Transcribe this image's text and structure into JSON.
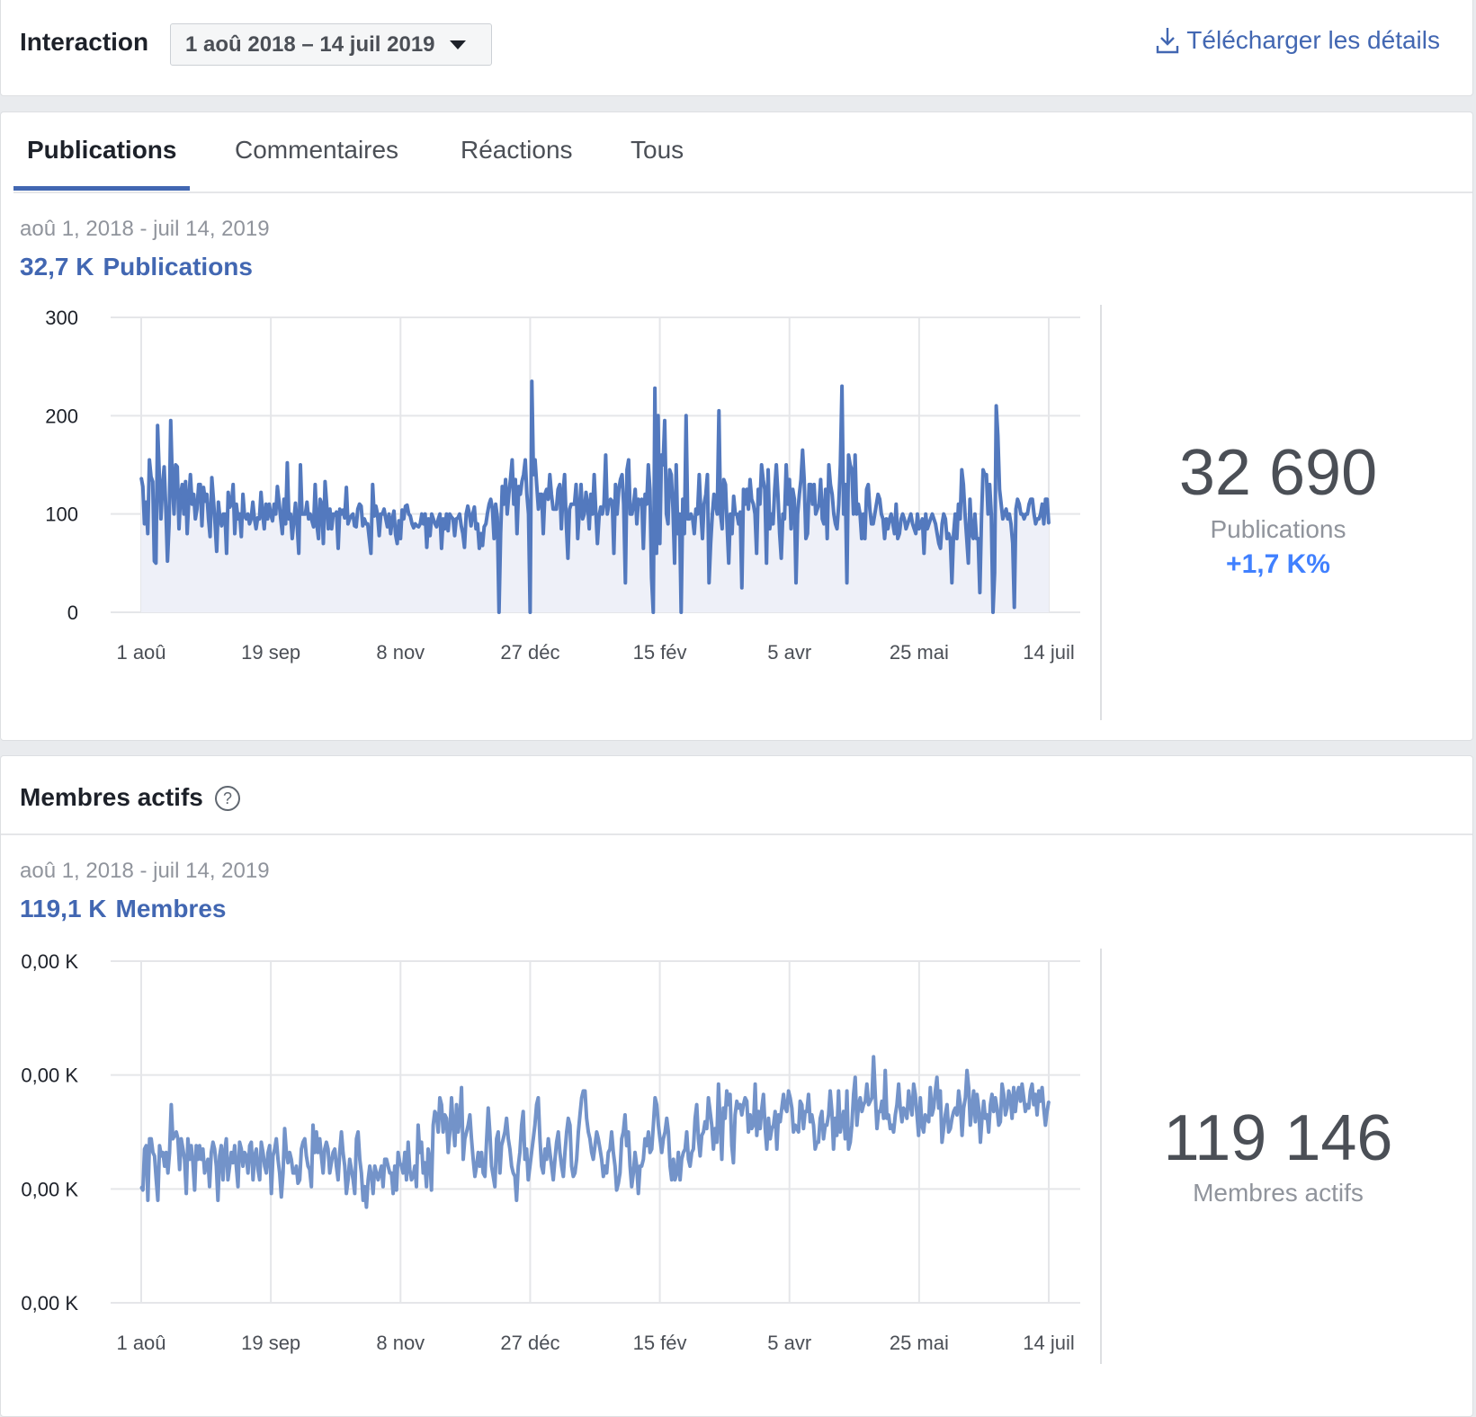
{
  "header": {
    "title": "Interaction",
    "date_range_label": "1 aoû 2018 – 14 juil 2019",
    "download_label": "Télécharger les détails"
  },
  "tabs": [
    {
      "label": "Publications",
      "active": true
    },
    {
      "label": "Commentaires",
      "active": false
    },
    {
      "label": "Réactions",
      "active": false
    },
    {
      "label": "Tous",
      "active": false
    }
  ],
  "publications": {
    "date_range": "aoû 1, 2018 - juil 14, 2019",
    "total_short": "32,7 K",
    "total_unit": "Publications",
    "big_number": "32 690",
    "big_label": "Publications",
    "delta": "+1,7 K%"
  },
  "members": {
    "section_title": "Membres actifs",
    "help_icon": "?",
    "date_range": "aoû 1, 2018 - juil 14, 2019",
    "total_short": "119,1 K",
    "total_unit": "Membres",
    "big_number": "119 146",
    "big_label": "Membres actifs"
  },
  "colors": {
    "accent": "#4267b2",
    "line_pub": "#5379be",
    "line_members": "#7393c9",
    "area_fill": "#eef0f8",
    "delta": "#4080ff"
  },
  "chart_data": [
    {
      "type": "area",
      "series": [
        {
          "values": [
            137,
            128,
            90,
            112,
            80,
            155,
            138,
            133,
            52,
            50,
            190,
            140,
            95,
            128,
            148,
            105,
            52,
            90,
            195,
            130,
            100,
            150,
            148,
            85,
            120,
            130,
            100,
            133,
            80,
            115,
            140,
            110,
            120,
            95,
            105,
            130,
            130,
            88,
            127,
            113,
            120,
            95,
            77,
            137,
            115,
            90,
            62,
            112,
            95,
            88,
            100,
            100,
            60,
            122,
            107,
            110,
            130,
            80,
            110,
            95,
            100,
            77,
            120,
            98,
            95,
            100,
            90,
            95,
            112,
            95,
            85,
            96,
            95,
            122,
            100,
            85,
            110,
            95,
            110,
            99,
            93,
            110,
            100,
            128,
            112,
            95,
            80,
            115,
            90,
            152,
            95,
            100,
            75,
            93,
            111,
            90,
            60,
            150,
            100,
            100,
            100,
            112,
            95,
            100,
            93,
            87,
            130,
            90,
            75,
            115,
            110,
            70,
            133,
            110,
            85,
            105,
            85,
            100,
            99,
            102,
            65,
            105,
            100,
            104,
            96,
            127,
            90,
            95,
            98,
            100,
            88,
            87,
            105,
            110,
            108,
            88,
            95,
            90,
            90,
            75,
            60,
            130,
            98,
            108,
            100,
            78,
            100,
            100,
            105,
            95,
            87,
            100,
            80,
            95,
            103,
            79,
            70,
            93,
            75,
            104,
            95,
            108,
            109,
            100,
            98,
            90,
            86,
            90,
            88,
            87,
            90,
            100,
            90,
            100,
            66,
            95,
            78,
            100,
            95,
            90,
            87,
            95,
            100,
            65,
            95,
            85,
            100,
            83,
            100,
            97,
            95,
            78,
            95,
            96,
            100,
            88,
            80,
            66,
            100,
            108,
            100,
            88,
            100,
            107,
            85,
            90,
            65,
            80,
            68,
            87,
            90,
            101,
            110,
            115,
            105,
            75,
            110,
            97,
            0,
            80,
            128,
            110,
            135,
            100,
            120,
            135,
            155,
            110,
            135,
            80,
            128,
            120,
            133,
            140,
            155,
            120,
            100,
            0,
            235,
            140,
            155,
            130,
            105,
            120,
            120,
            80,
            120,
            125,
            115,
            140,
            120,
            105,
            105,
            105,
            125,
            130,
            85,
            120,
            140,
            90,
            55,
            105,
            110,
            110,
            110,
            130,
            75,
            105,
            130,
            95,
            100,
            122,
            110,
            85,
            120,
            100,
            140,
            103,
            70,
            98,
            107,
            100,
            110,
            160,
            100,
            110,
            115,
            113,
            60,
            130,
            100,
            125,
            135,
            140,
            110,
            30,
            145,
            155,
            100,
            100,
            110,
            125,
            90,
            115,
            110,
            115,
            65,
            120,
            110,
            150,
            125,
            35,
            0,
            228,
            60,
            200,
            70,
            160,
            150,
            195,
            100,
            90,
            145,
            140,
            105,
            50,
            150,
            80,
            100,
            0,
            115,
            80,
            200,
            95,
            95,
            100,
            95,
            80,
            105,
            100,
            140,
            102,
            75,
            110,
            120,
            140,
            30,
            70,
            100,
            120,
            110,
            100,
            205,
            100,
            85,
            135,
            130,
            88,
            50,
            100,
            80,
            118,
            100,
            100,
            90,
            102,
            25,
            125,
            110,
            125,
            105,
            135,
            115,
            110,
            100,
            60,
            125,
            110,
            150,
            135,
            125,
            50,
            145,
            85,
            100,
            90,
            125,
            150,
            120,
            80,
            55,
            100,
            95,
            150,
            110,
            135,
            85,
            125,
            115,
            30,
            100,
            120,
            135,
            165,
            135,
            75,
            80,
            130,
            130,
            110,
            130,
            100,
            105,
            110,
            135,
            95,
            90,
            125,
            75,
            150,
            130,
            120,
            100,
            90,
            85,
            110,
            150,
            230,
            100,
            130,
            30,
            160,
            150,
            145,
            100,
            160,
            100,
            110,
            100,
            75,
            100,
            75,
            125,
            130,
            105,
            90,
            90,
            100,
            110,
            120,
            115,
            100,
            95,
            75,
            95,
            85,
            95,
            100,
            90,
            80,
            110,
            75,
            80,
            95,
            100,
            95,
            85,
            90,
            95,
            100,
            90,
            85,
            80,
            100,
            85,
            90,
            95,
            60,
            100,
            85,
            90,
            95,
            100,
            95,
            90,
            80,
            70,
            65,
            90,
            100,
            95,
            75,
            80,
            75,
            30,
            80,
            100,
            75,
            110,
            95,
            145,
            130,
            100,
            75,
            50,
            115,
            80,
            75,
            100,
            75,
            75,
            20,
            95,
            145,
            140,
            140,
            100,
            130,
            100,
            0,
            40,
            210,
            180,
            125,
            110,
            95,
            100,
            105,
            95,
            100,
            90,
            70,
            5,
            105,
            115,
            110,
            100,
            100,
            95,
            100,
            100,
            110,
            115,
            115,
            100,
            90,
            95,
            95,
            100,
            110,
            90,
            115,
            115,
            90
          ],
          "color_key": "line_pub"
        }
      ],
      "x_ticks": [
        "1 aoû",
        "19 sep",
        "8 nov",
        "27 déc",
        "15 fév",
        "5 avr",
        "25 mai",
        "14 juil"
      ],
      "y_ticks": [
        "0",
        "100",
        "200",
        "300"
      ],
      "ylim": [
        0,
        300
      ]
    },
    {
      "type": "line",
      "series": [
        {
          "values": [
            34,
            33,
            45,
            46,
            30,
            48,
            48,
            44,
            43,
            36,
            30,
            46,
            43,
            44,
            40,
            44,
            38,
            44,
            58,
            48,
            49,
            50,
            48,
            39,
            48,
            45,
            42,
            32,
            48,
            42,
            46,
            41,
            33,
            46,
            42,
            46,
            42,
            45,
            38,
            40,
            42,
            34,
            44,
            47,
            45,
            40,
            30,
            43,
            46,
            36,
            44,
            48,
            36,
            40,
            44,
            41,
            46,
            40,
            34,
            47,
            45,
            40,
            44,
            43,
            38,
            46,
            47,
            36,
            43,
            45,
            39,
            36,
            47,
            44,
            40,
            38,
            44,
            46,
            32,
            43,
            45,
            48,
            42,
            38,
            31,
            38,
            51,
            44,
            41,
            44,
            42,
            38,
            38,
            40,
            35,
            36,
            45,
            47,
            48,
            43,
            40,
            39,
            34,
            52,
            44,
            50,
            44,
            48,
            43,
            38,
            45,
            47,
            45,
            38,
            41,
            44,
            45,
            40,
            36,
            44,
            50,
            44,
            40,
            32,
            36,
            42,
            39,
            36,
            32,
            48,
            50,
            42,
            38,
            30,
            34,
            28,
            36,
            40,
            37,
            32,
            40,
            38,
            36,
            38,
            40,
            34,
            42,
            42,
            40,
            38,
            38,
            32,
            40,
            33,
            44,
            41,
            40,
            38,
            44,
            36,
            47,
            39,
            36,
            37,
            40,
            34,
            52,
            44,
            47,
            38,
            41,
            34,
            45,
            42,
            33,
            52,
            56,
            55,
            50,
            60,
            58,
            50,
            55,
            54,
            44,
            50,
            60,
            52,
            46,
            58,
            50,
            54,
            63,
            42,
            48,
            50,
            52,
            55,
            48,
            42,
            37,
            40,
            44,
            40,
            44,
            38,
            37,
            47,
            57,
            50,
            40,
            37,
            34,
            48,
            50,
            38,
            46,
            48,
            50,
            54,
            48,
            45,
            40,
            38,
            37,
            30,
            40,
            44,
            52,
            56,
            42,
            45,
            36,
            40,
            44,
            48,
            52,
            58,
            60,
            48,
            40,
            38,
            45,
            42,
            48,
            44,
            40,
            36,
            42,
            47,
            50,
            44,
            40,
            37,
            44,
            50,
            54,
            52,
            40,
            37,
            38,
            42,
            50,
            55,
            60,
            62,
            62,
            54,
            50,
            48,
            44,
            42,
            46,
            50,
            48,
            45,
            42,
            37,
            40,
            38,
            44,
            45,
            50,
            44,
            40,
            33,
            35,
            38,
            48,
            50,
            55,
            46,
            50,
            40,
            34,
            38,
            44,
            40,
            32,
            40,
            40,
            42,
            48,
            46,
            50,
            44,
            45,
            52,
            60,
            58,
            52,
            48,
            44,
            48,
            50,
            54,
            50,
            40,
            36,
            42,
            36,
            38,
            44,
            36,
            42,
            44,
            45,
            50,
            42,
            40,
            44,
            45,
            54,
            58,
            48,
            43,
            49,
            50,
            53,
            51,
            60,
            56,
            52,
            45,
            51,
            47,
            64,
            53,
            42,
            57,
            54,
            62,
            58,
            61,
            46,
            41,
            55,
            59,
            57,
            58,
            55,
            58,
            60,
            59,
            50,
            55,
            51,
            52,
            64,
            49,
            56,
            51,
            57,
            61,
            51,
            45,
            54,
            48,
            51,
            52,
            56,
            45,
            55,
            53,
            57,
            61,
            57,
            56,
            62,
            60,
            57,
            50,
            52,
            51,
            50,
            59,
            58,
            51,
            56,
            56,
            61,
            53,
            55,
            52,
            45,
            47,
            47,
            54,
            56,
            48,
            52,
            52,
            55,
            62,
            56,
            45,
            54,
            49,
            62,
            50,
            53,
            56,
            48,
            62,
            45,
            47,
            52,
            61,
            66,
            52,
            58,
            60,
            56,
            58,
            59,
            64,
            58,
            59,
            60,
            72,
            61,
            51,
            56,
            56,
            59,
            54,
            68,
            54,
            55,
            51,
            52,
            50,
            55,
            58,
            64,
            57,
            53,
            57,
            56,
            54,
            62,
            58,
            55,
            64,
            61,
            55,
            49,
            60,
            52,
            50,
            55,
            54,
            53,
            63,
            55,
            57,
            62,
            66,
            57,
            62,
            47,
            51,
            55,
            58,
            50,
            51,
            54,
            56,
            57,
            55,
            62,
            58,
            49,
            57,
            60,
            68,
            63,
            52,
            57,
            62,
            53,
            61,
            57,
            47,
            54,
            59,
            54,
            55,
            50,
            58,
            61,
            56,
            60,
            57,
            52,
            53,
            64,
            61,
            55,
            57,
            62,
            60,
            54,
            63,
            56,
            61,
            63,
            59,
            64,
            60,
            56,
            58,
            57,
            62,
            64,
            58,
            61,
            55,
            62,
            59,
            63,
            57,
            52,
            56,
            59
          ],
          "color_key": "line_members"
        }
      ],
      "x_ticks": [
        "1 aoû",
        "19 sep",
        "8 nov",
        "27 déc",
        "15 fév",
        "5 avr",
        "25 mai",
        "14 juil"
      ],
      "y_ticks": [
        "0,00 K",
        "0,00 K",
        "0,00 K",
        "0,00 K"
      ],
      "ylim": [
        0,
        100
      ]
    }
  ]
}
